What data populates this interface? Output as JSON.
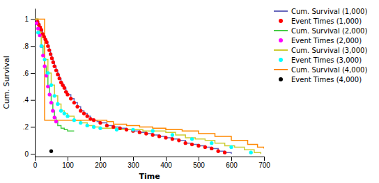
{
  "chart_data": {
    "type": "line",
    "xlabel": "Time",
    "ylabel": "Cum. Survival",
    "xlim": [
      0,
      700
    ],
    "ylim": [
      -0.02,
      1.08
    ],
    "xticks": [
      0,
      100,
      200,
      300,
      400,
      500,
      600,
      700
    ],
    "yticks": [
      0,
      {
        "value": 0.2,
        "label": ".2"
      },
      {
        "value": 0.4,
        "label": ".4"
      },
      {
        "value": 0.6,
        "label": ".6"
      },
      {
        "value": 0.8,
        "label": ".8"
      },
      1
    ],
    "grid": false,
    "legend": "right",
    "series": [
      {
        "name": "Cum. Survival (1,000)",
        "type": "line",
        "line_style": "step",
        "color": "#6666bb",
        "x": [
          0,
          8,
          12,
          16,
          20,
          24,
          28,
          32,
          36,
          40,
          44,
          48,
          52,
          56,
          60,
          65,
          70,
          75,
          80,
          85,
          90,
          95,
          100,
          110,
          120,
          130,
          140,
          150,
          160,
          170,
          180,
          190,
          200,
          220,
          240,
          260,
          280,
          300,
          320,
          340,
          360,
          380,
          400,
          420,
          440,
          460,
          480,
          500,
          520,
          540,
          560,
          580,
          600
        ],
        "values": [
          1.0,
          0.98,
          0.96,
          0.94,
          0.92,
          0.89,
          0.87,
          0.85,
          0.83,
          0.8,
          0.77,
          0.74,
          0.71,
          0.68,
          0.65,
          0.62,
          0.59,
          0.56,
          0.53,
          0.51,
          0.49,
          0.46,
          0.44,
          0.41,
          0.38,
          0.35,
          0.32,
          0.3,
          0.28,
          0.26,
          0.25,
          0.24,
          0.23,
          0.21,
          0.2,
          0.19,
          0.18,
          0.17,
          0.16,
          0.15,
          0.14,
          0.13,
          0.12,
          0.11,
          0.1,
          0.08,
          0.07,
          0.06,
          0.05,
          0.04,
          0.02,
          0.01,
          0.0
        ]
      },
      {
        "name": "Event Times (1,000)",
        "type": "scatter",
        "marker": "circle",
        "color": "red",
        "x": [
          8,
          12,
          16,
          20,
          24,
          28,
          32,
          36,
          40,
          44,
          48,
          52,
          56,
          60,
          65,
          70,
          75,
          80,
          85,
          90,
          95,
          100,
          110,
          120,
          130,
          140,
          150,
          160,
          170,
          180,
          200,
          220,
          240,
          260,
          280,
          300,
          320,
          340,
          360,
          380,
          400,
          420,
          440,
          460,
          480,
          500,
          520,
          540,
          560,
          580
        ],
        "values": [
          0.98,
          0.96,
          0.94,
          0.92,
          0.89,
          0.87,
          0.85,
          0.83,
          0.8,
          0.77,
          0.74,
          0.71,
          0.68,
          0.65,
          0.62,
          0.59,
          0.56,
          0.53,
          0.51,
          0.49,
          0.46,
          0.44,
          0.41,
          0.38,
          0.35,
          0.32,
          0.3,
          0.28,
          0.26,
          0.25,
          0.23,
          0.21,
          0.2,
          0.19,
          0.18,
          0.17,
          0.16,
          0.15,
          0.14,
          0.13,
          0.12,
          0.11,
          0.1,
          0.08,
          0.07,
          0.06,
          0.05,
          0.04,
          0.02,
          0.01
        ]
      },
      {
        "name": "Cum. Survival (2,000)",
        "type": "line",
        "line_style": "step",
        "color": "#44cc44",
        "x": [
          0,
          10,
          15,
          20,
          25,
          30,
          35,
          40,
          45,
          50,
          55,
          60,
          65,
          70,
          80,
          90,
          100,
          120
        ],
        "values": [
          1.0,
          0.95,
          0.88,
          0.8,
          0.73,
          0.65,
          0.58,
          0.5,
          0.44,
          0.38,
          0.32,
          0.27,
          0.24,
          0.21,
          0.19,
          0.18,
          0.17,
          0.17
        ]
      },
      {
        "name": "Event Times (2,000)",
        "type": "scatter",
        "marker": "circle",
        "color": "magenta",
        "x": [
          5,
          10,
          15,
          20,
          25,
          30,
          35,
          40,
          45,
          50,
          55,
          60,
          65
        ],
        "values": [
          0.97,
          0.93,
          0.88,
          0.8,
          0.73,
          0.65,
          0.58,
          0.5,
          0.44,
          0.38,
          0.32,
          0.27,
          0.24
        ]
      },
      {
        "name": "Cum. Survival (3,000)",
        "type": "line",
        "line_style": "step",
        "color": "#cccc33",
        "x": [
          0,
          10,
          20,
          30,
          40,
          50,
          60,
          70,
          80,
          90,
          100,
          120,
          140,
          160,
          180,
          200,
          220,
          250,
          280,
          300,
          330,
          360,
          400,
          430,
          460,
          490,
          520,
          550,
          580,
          610,
          640,
          670,
          690
        ],
        "values": [
          1.0,
          0.9,
          0.8,
          0.7,
          0.6,
          0.51,
          0.43,
          0.37,
          0.32,
          0.3,
          0.28,
          0.25,
          0.23,
          0.21,
          0.2,
          0.19,
          0.19,
          0.18,
          0.18,
          0.18,
          0.17,
          0.17,
          0.16,
          0.14,
          0.12,
          0.11,
          0.1,
          0.08,
          0.06,
          0.05,
          0.03,
          0.01,
          0.0
        ]
      },
      {
        "name": "Event Times (3,000)",
        "type": "scatter",
        "marker": "circle",
        "color": "cyan",
        "x": [
          10,
          20,
          30,
          40,
          50,
          60,
          70,
          80,
          90,
          100,
          120,
          140,
          160,
          180,
          200,
          250,
          300,
          360,
          420,
          480,
          540,
          600,
          660
        ],
        "values": [
          0.9,
          0.8,
          0.7,
          0.6,
          0.51,
          0.43,
          0.37,
          0.32,
          0.3,
          0.28,
          0.25,
          0.23,
          0.21,
          0.2,
          0.19,
          0.18,
          0.18,
          0.17,
          0.14,
          0.11,
          0.08,
          0.05,
          0.01
        ]
      },
      {
        "name": "Cum. Survival (4,000)",
        "type": "line",
        "line_style": "step",
        "color": "#ff8800",
        "x": [
          0,
          5,
          30,
          200,
          220,
          240,
          280,
          320,
          360,
          400,
          450,
          500,
          550,
          600,
          650,
          680,
          700
        ],
        "values": [
          1.0,
          1.0,
          0.25,
          0.25,
          0.24,
          0.22,
          0.21,
          0.2,
          0.19,
          0.18,
          0.17,
          0.15,
          0.13,
          0.1,
          0.07,
          0.05,
          0.04
        ]
      },
      {
        "name": "Event Times (4,000)",
        "type": "scatter",
        "marker": "circle",
        "color": "black",
        "x": [
          50
        ],
        "values": [
          0.02
        ]
      }
    ]
  }
}
